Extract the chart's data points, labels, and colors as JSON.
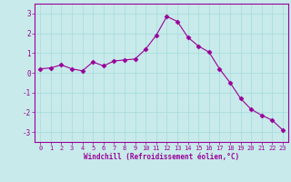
{
  "x": [
    0,
    1,
    2,
    3,
    4,
    5,
    6,
    7,
    8,
    9,
    10,
    11,
    12,
    13,
    14,
    15,
    16,
    17,
    18,
    19,
    20,
    21,
    22,
    23
  ],
  "y": [
    0.2,
    0.25,
    0.4,
    0.2,
    0.1,
    0.55,
    0.35,
    0.6,
    0.65,
    0.7,
    1.2,
    1.9,
    2.85,
    2.6,
    1.8,
    1.35,
    1.05,
    0.2,
    -0.5,
    -1.3,
    -1.85,
    -2.15,
    -2.4,
    -2.9
  ],
  "line_color": "#990099",
  "marker": "D",
  "marker_size": 2.5,
  "background_color": "#c8eaea",
  "grid_color": "#aadddd",
  "xlabel": "Windchill (Refroidissement éolien,°C)",
  "xlabel_color": "#990099",
  "tick_color": "#990099",
  "ylim": [
    -3.5,
    3.5
  ],
  "xlim": [
    -0.5,
    23.5
  ],
  "yticks": [
    -3,
    -2,
    -1,
    0,
    1,
    2,
    3
  ],
  "xticks": [
    0,
    1,
    2,
    3,
    4,
    5,
    6,
    7,
    8,
    9,
    10,
    11,
    12,
    13,
    14,
    15,
    16,
    17,
    18,
    19,
    20,
    21,
    22,
    23
  ]
}
